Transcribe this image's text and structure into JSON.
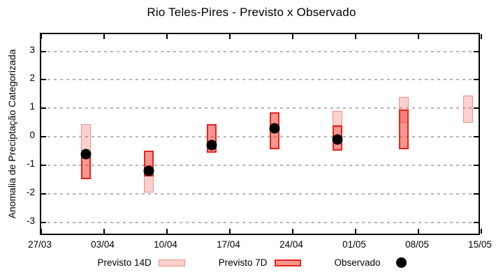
{
  "chart_data": {
    "type": "bar",
    "subtype": "floating-range-bars-with-points",
    "title": "Rio Teles-Pires - Previsto x Observado",
    "ylabel": "Anomalia de Preciptação Categorizada",
    "xlabel": "",
    "grid": "horizontal-dashed",
    "y_axis": {
      "ticks": [
        3,
        2,
        1,
        0,
        -1,
        -2,
        -3
      ],
      "range": [
        -3.5,
        3.6
      ]
    },
    "x_axis": {
      "tick_labels": [
        "27/03",
        "03/04",
        "10/04",
        "17/04",
        "24/04",
        "01/05",
        "08/05",
        "15/05"
      ],
      "tick_days": [
        0,
        7,
        14,
        21,
        28,
        35,
        42,
        49
      ],
      "range_days": [
        0,
        49
      ]
    },
    "series_names": [
      "Previsto 14D",
      "Previsto 7D",
      "Observado"
    ],
    "groups": [
      {
        "date_est": "01/04",
        "day": 4.95,
        "forecast_14d": {
          "low": -0.6,
          "high": 0.45
        },
        "forecast_7d": {
          "low": -1.5,
          "high": -0.6
        },
        "observed": -0.6
      },
      {
        "date_est": "08/04",
        "day": 12,
        "forecast_14d": {
          "low": -1.95,
          "high": -1.0
        },
        "forecast_7d": {
          "low": -1.4,
          "high": -0.5
        },
        "observed": -1.2
      },
      {
        "date_est": "15/04",
        "day": 19,
        "forecast_14d": null,
        "forecast_7d": {
          "low": -0.55,
          "high": 0.45
        },
        "observed": -0.3
      },
      {
        "date_est": "22/04",
        "day": 26,
        "forecast_14d": null,
        "forecast_7d": {
          "low": -0.45,
          "high": 0.85
        },
        "observed": 0.3
      },
      {
        "date_est": "29/04",
        "day": 33,
        "forecast_14d": {
          "low": 0.4,
          "high": 0.9
        },
        "forecast_7d": {
          "low": -0.5,
          "high": 0.4
        },
        "observed": -0.1
      },
      {
        "date_est": "06/05",
        "day": 40.4,
        "forecast_14d": {
          "low": 0.5,
          "high": 1.4
        },
        "forecast_7d": {
          "low": -0.45,
          "high": 0.95
        },
        "observed": null
      },
      {
        "date_est": "13/05",
        "day": 47.5,
        "forecast_14d": {
          "low": 0.5,
          "high": 1.45
        },
        "forecast_7d": null,
        "observed": null
      }
    ],
    "colors": {
      "forecast_14d_fill": "rgba(240,72,60,0.26)",
      "forecast_14d_border": "#f09086",
      "forecast_7d_fill": "rgba(240,58,45,0.53)",
      "forecast_7d_border": "#e82418",
      "observed": "#000000",
      "gridline": "#b5b5b5",
      "axis": "#000000"
    }
  },
  "legend": {
    "items": [
      {
        "label": "Previsto 14D",
        "swatch": "14d-box"
      },
      {
        "label": "Previsto 7D",
        "swatch": "7d-box"
      },
      {
        "label": "Observado",
        "swatch": "black-dot"
      }
    ]
  }
}
